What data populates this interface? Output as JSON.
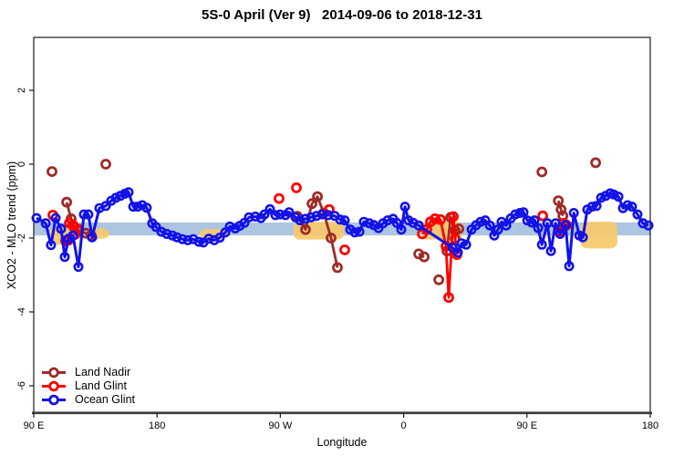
{
  "title": "5S-0 April (Ver 9)   2014-09-06 to 2018-12-31",
  "chart_data": {
    "type": "line",
    "title": "5S-0 April (Ver 9)   2014-09-06 to 2018-12-31",
    "xlabel": "Longitude",
    "ylabel": "XCO2 - MLO trend (ppm)",
    "x_axis_note": "x values are degrees eastward from 90E along a wrapped 450-degree longitude axis",
    "x_ticks": [
      {
        "pos": 0,
        "label": "90 E"
      },
      {
        "pos": 90,
        "label": "180"
      },
      {
        "pos": 180,
        "label": "90 W"
      },
      {
        "pos": 270,
        "label": "0"
      },
      {
        "pos": 360,
        "label": "90 E"
      },
      {
        "pos": 450,
        "label": "180"
      }
    ],
    "y_ticks": [
      2,
      0,
      -2,
      -4,
      -6
    ],
    "xlim": [
      0,
      450
    ],
    "ylim": [
      -6.7,
      3.4
    ],
    "grid": false,
    "legend_position": "bottom-left",
    "band": {
      "y_from": -1.58,
      "y_to": -1.93,
      "color": "#A9C2DE",
      "opacity": 0.95
    },
    "patch_color": "#F6C96A",
    "patches": [
      {
        "x_from": 12,
        "x_to": 29,
        "y_from": -1.66,
        "y_to": -2.18
      },
      {
        "x_from": 41,
        "x_to": 55,
        "y_from": -1.74,
        "y_to": -2.02
      },
      {
        "x_from": 121,
        "x_to": 142,
        "y_from": -1.76,
        "y_to": -2.0
      },
      {
        "x_from": 189.5,
        "x_to": 226.5,
        "y_from": -1.56,
        "y_to": -2.04
      },
      {
        "x_from": 283,
        "x_to": 313,
        "y_from": -1.56,
        "y_to": -2.04
      },
      {
        "x_from": 399,
        "x_to": 426,
        "y_from": -1.56,
        "y_to": -2.28
      }
    ],
    "series": [
      {
        "name": "Land Nadir",
        "color": "#9E2B28",
        "segments": [
          [
            [
              13.3,
              -0.2
            ]
          ],
          [
            [
              52.6,
              0.0
            ]
          ],
          [
            [
              24.0,
              -1.03
            ],
            [
              27.3,
              -1.48
            ],
            [
              29.3,
              -1.7
            ],
            [
              32.0,
              -1.78
            ],
            [
              37.9,
              -1.87
            ],
            [
              41.9,
              -1.93
            ]
          ],
          [
            [
              192.4,
              -1.41
            ],
            [
              198.4,
              -1.77
            ],
            [
              203.1,
              -1.07
            ],
            [
              207.1,
              -0.88
            ],
            [
              211.7,
              -1.32
            ],
            [
              217.0,
              -2.0
            ],
            [
              221.7,
              -2.8
            ]
          ],
          [
            [
              281.0,
              -2.43
            ],
            [
              285.0,
              -2.51
            ]
          ],
          [
            [
              295.6,
              -3.13
            ]
          ],
          [
            [
              301.6,
              -2.35
            ],
            [
              304.3,
              -1.44
            ],
            [
              307.6,
              -1.8
            ],
            [
              310.3,
              -1.75
            ]
          ],
          [
            [
              370.9,
              -0.21
            ]
          ],
          [
            [
              382.9,
              -0.99
            ],
            [
              384.9,
              -1.23
            ],
            [
              386.2,
              -1.4
            ]
          ],
          [
            [
              410.1,
              0.04
            ]
          ]
        ]
      },
      {
        "name": "Land Glint",
        "color": "#FF0000",
        "segments": [
          [
            [
              14.0,
              -1.38
            ]
          ],
          [
            [
              23.3,
              -2.08
            ],
            [
              25.3,
              -2.06
            ]
          ],
          [
            [
              26.0,
              -1.59
            ],
            [
              28.6,
              -1.65
            ],
            [
              30.3,
              -1.9
            ],
            [
              32.6,
              -1.76
            ]
          ],
          [
            [
              179.1,
              -0.93
            ]
          ],
          [
            [
              191.7,
              -0.64
            ]
          ],
          [
            [
              215.7,
              -1.23
            ]
          ],
          [
            [
              227.0,
              -2.32
            ]
          ],
          [
            [
              283.6,
              -1.89
            ],
            [
              286.9,
              -1.77
            ],
            [
              289.6,
              -1.56
            ],
            [
              292.9,
              -1.48
            ],
            [
              296.9,
              -1.5
            ],
            [
              300.9,
              -2.22
            ],
            [
              302.9,
              -3.61
            ],
            [
              306.3,
              -1.42
            ],
            [
              307.6,
              -2.02
            ],
            [
              308.9,
              -2.45
            ]
          ],
          [
            [
              371.5,
              -1.4
            ]
          ],
          [
            [
              384.2,
              -1.83
            ],
            [
              386.9,
              -1.6
            ],
            [
              388.9,
              -1.65
            ]
          ]
        ]
      },
      {
        "name": "Ocean Glint",
        "color": "#1212E8",
        "segments": [
          [
            [
              2,
              -1.46
            ],
            [
              8.7,
              -1.6
            ],
            [
              12.6,
              -2.19
            ],
            [
              16,
              -1.46
            ],
            [
              20,
              -1.75
            ],
            [
              22.6,
              -2.51
            ],
            [
              25.3,
              -2.02
            ],
            [
              28.6,
              -1.93
            ],
            [
              32.6,
              -2.78
            ],
            [
              36.6,
              -1.36
            ],
            [
              39.9,
              -1.36
            ],
            [
              42.6,
              -1.98
            ],
            [
              47.9,
              -1.19
            ],
            [
              52.6,
              -1.13
            ],
            [
              56.6,
              -0.99
            ],
            [
              59.9,
              -0.91
            ],
            [
              63.2,
              -0.86
            ],
            [
              66.6,
              -0.8
            ],
            [
              69.2,
              -0.76
            ],
            [
              72.6,
              -1.15
            ],
            [
              75.9,
              -1.15
            ],
            [
              79.2,
              -1.11
            ],
            [
              82.5,
              -1.18
            ],
            [
              86.5,
              -1.6
            ],
            [
              89.2,
              -1.7
            ],
            [
              93.2,
              -1.83
            ],
            [
              97.2,
              -1.89
            ],
            [
              101.2,
              -1.93
            ],
            [
              104.5,
              -1.98
            ],
            [
              108.5,
              -2.03
            ],
            [
              112.5,
              -2.06
            ],
            [
              116.5,
              -2.03
            ],
            [
              120.5,
              -2.1
            ],
            [
              123.8,
              -2.12
            ],
            [
              127.8,
              -2.02
            ],
            [
              131.8,
              -2.06
            ],
            [
              135.8,
              -1.99
            ],
            [
              139.8,
              -1.85
            ],
            [
              143.1,
              -1.69
            ],
            [
              147.1,
              -1.74
            ],
            [
              150.4,
              -1.67
            ],
            [
              153.8,
              -1.59
            ],
            [
              157.1,
              -1.44
            ],
            [
              161.8,
              -1.42
            ],
            [
              165.8,
              -1.46
            ],
            [
              168.4,
              -1.36
            ],
            [
              172.4,
              -1.22
            ],
            [
              176.4,
              -1.38
            ],
            [
              179.8,
              -1.36
            ],
            [
              183.8,
              -1.38
            ],
            [
              186.4,
              -1.3
            ],
            [
              191.1,
              -1.44
            ],
            [
              194.4,
              -1.52
            ],
            [
              198.4,
              -1.48
            ],
            [
              202.4,
              -1.44
            ],
            [
              206.4,
              -1.4
            ],
            [
              210.4,
              -1.36
            ],
            [
              215,
              -1.38
            ],
            [
              219.7,
              -1.4
            ],
            [
              223.7,
              -1.5
            ],
            [
              227,
              -1.52
            ],
            [
              231,
              -1.77
            ],
            [
              234.3,
              -1.85
            ],
            [
              237.7,
              -1.83
            ],
            [
              241,
              -1.56
            ],
            [
              245,
              -1.6
            ],
            [
              248.3,
              -1.65
            ],
            [
              251.6,
              -1.73
            ],
            [
              255,
              -1.6
            ],
            [
              258.3,
              -1.52
            ],
            [
              262.3,
              -1.48
            ],
            [
              265,
              -1.59
            ],
            [
              268.3,
              -1.77
            ],
            [
              271,
              -1.15
            ],
            [
              273.6,
              -1.52
            ],
            [
              277,
              -1.59
            ],
            [
              281,
              -1.66
            ],
            [
              305.6,
              -2.26
            ],
            [
              309.6,
              -2.39
            ],
            [
              312.3,
              -2.14
            ],
            [
              315.6,
              -2.18
            ],
            [
              319.6,
              -1.77
            ],
            [
              322.9,
              -1.65
            ],
            [
              326.2,
              -1.56
            ],
            [
              329.6,
              -1.52
            ],
            [
              332.9,
              -1.66
            ],
            [
              336.2,
              -1.93
            ],
            [
              338.9,
              -1.77
            ],
            [
              341.5,
              -1.56
            ],
            [
              344.9,
              -1.66
            ],
            [
              348.2,
              -1.47
            ],
            [
              351.5,
              -1.36
            ],
            [
              354.9,
              -1.32
            ],
            [
              357.5,
              -1.3
            ],
            [
              360.2,
              -1.52
            ],
            [
              363.5,
              -1.58
            ],
            [
              365.5,
              -1.52
            ],
            [
              368.2,
              -1.73
            ],
            [
              370.9,
              -2.18
            ],
            [
              374.9,
              -1.6
            ],
            [
              377.5,
              -2.35
            ],
            [
              380.9,
              -1.6
            ],
            [
              384.2,
              -1.89
            ],
            [
              388.2,
              -1.65
            ],
            [
              390.8,
              -2.76
            ],
            [
              394.2,
              -1.32
            ],
            [
              398.2,
              -1.93
            ],
            [
              400.8,
              -1.98
            ],
            [
              404.1,
              -1.23
            ],
            [
              407.5,
              -1.15
            ],
            [
              410.8,
              -1.13
            ],
            [
              414.1,
              -0.91
            ],
            [
              417.4,
              -0.86
            ],
            [
              420.8,
              -0.79
            ],
            [
              423.4,
              -0.82
            ],
            [
              426.8,
              -0.88
            ],
            [
              430.1,
              -1.19
            ],
            [
              433.4,
              -1.11
            ],
            [
              436.7,
              -1.15
            ],
            [
              440.7,
              -1.36
            ],
            [
              444.7,
              -1.6
            ],
            [
              448.7,
              -1.66
            ]
          ]
        ]
      }
    ]
  }
}
